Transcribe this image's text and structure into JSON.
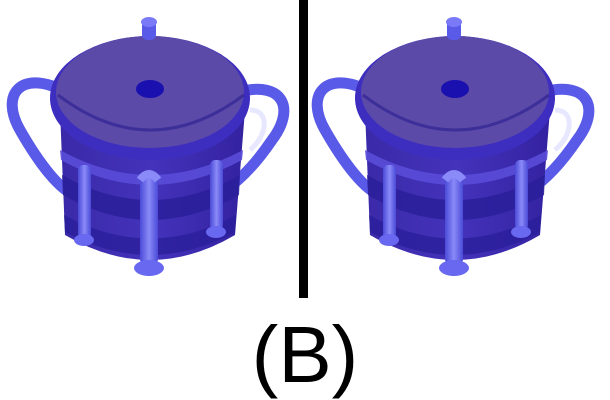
{
  "caption": "(B)",
  "colors": {
    "background": "#ffffff",
    "divider": "#000000",
    "pot_lid": "#5b4aa8",
    "pot_body": "#4433bb",
    "pot_band_dark": "#2a1e9a",
    "pot_handle": "#5a5ae8",
    "lid_knob": "#1a10b0"
  },
  "images": [
    {
      "icon": "drum-pot-icon",
      "side": "left"
    },
    {
      "icon": "drum-pot-icon",
      "side": "right"
    }
  ]
}
